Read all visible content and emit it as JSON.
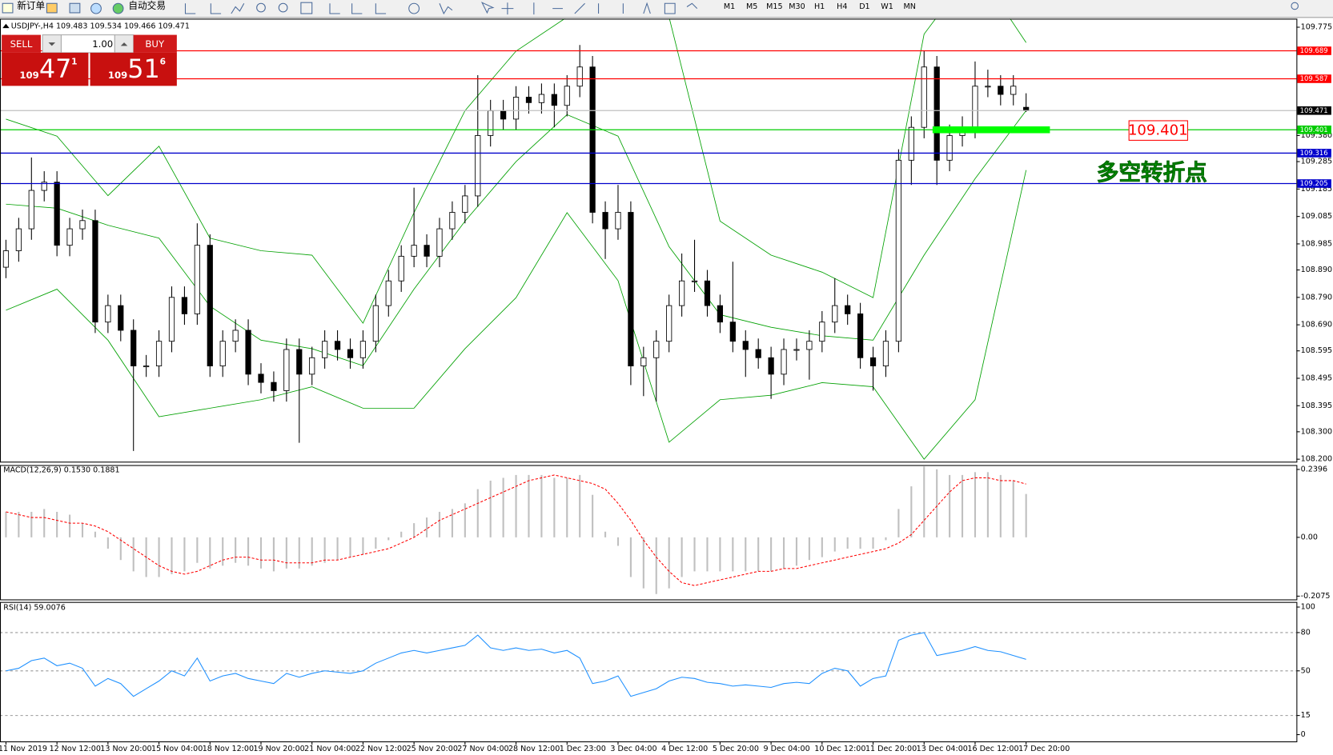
{
  "toolbar": {
    "new_order": "新订单",
    "auto_trading": "自动交易",
    "timeframes": [
      "M1",
      "M5",
      "M15",
      "M30",
      "H1",
      "H4",
      "D1",
      "W1",
      "MN"
    ]
  },
  "trade_panel": {
    "sell_label": "SELL",
    "buy_label": "BUY",
    "volume": "1.00",
    "sell_price": [
      "109",
      "47",
      "1"
    ],
    "buy_price": [
      "109",
      "51",
      "6"
    ]
  },
  "chart_data": [
    {
      "type": "candlestick",
      "header": "USDJPY-,H4  109.483 109.534 109.466 109.471",
      "xlim": [
        -0.467,
        101.2
      ],
      "xticks": [
        {
          "value": 0,
          "label": "11 Nov 2019"
        },
        {
          "value": 4,
          "label": "12 Nov 12:00"
        },
        {
          "value": 8,
          "label": "13 Nov 20:00"
        },
        {
          "value": 12,
          "label": "15 Nov 04:00"
        },
        {
          "value": 16,
          "label": "18 Nov 12:00"
        },
        {
          "value": 20,
          "label": "19 Nov 20:00"
        },
        {
          "value": 24,
          "label": "21 Nov 04:00"
        },
        {
          "value": 28,
          "label": "22 Nov 12:00"
        },
        {
          "value": 32,
          "label": "25 Nov 20:00"
        },
        {
          "value": 36,
          "label": "27 Nov 04:00"
        },
        {
          "value": 40,
          "label": "28 Nov 12:00"
        },
        {
          "value": 44,
          "label": "1 Dec 23:00"
        },
        {
          "value": 48,
          "label": "3 Dec 04:00"
        },
        {
          "value": 52,
          "label": "4 Dec 12:00"
        },
        {
          "value": 56,
          "label": "5 Dec 20:00"
        },
        {
          "value": 60,
          "label": "9 Dec 04:00"
        },
        {
          "value": 64,
          "label": "10 Dec 12:00"
        },
        {
          "value": 68,
          "label": "11 Dec 20:00"
        },
        {
          "value": 72,
          "label": "13 Dec 04:00"
        },
        {
          "value": 76,
          "label": "16 Dec 12:00"
        },
        {
          "value": 80,
          "label": "17 Dec 20:00"
        }
      ],
      "ylim": [
        108.191,
        109.806
      ],
      "yticks": [
        109.775,
        {
          "value": 109.38,
          "label": "109.380"
        },
        109.285,
        109.185,
        109.085,
        108.985,
        {
          "value": 108.89,
          "label": "108.890"
        },
        {
          "value": 108.79,
          "label": "108.790"
        },
        {
          "value": 108.69,
          "label": "108.690"
        },
        108.595,
        108.495,
        108.395,
        {
          "value": 108.3,
          "label": "108.300"
        },
        {
          "value": 108.2,
          "label": "108.200"
        }
      ],
      "bull_color": "#ffffff",
      "bear_color": "#000000",
      "open": [
        108.9,
        108.96,
        109.04,
        109.18,
        109.21,
        108.98,
        109.04,
        109.07,
        108.7,
        108.76,
        108.67,
        108.54,
        108.54,
        108.63,
        108.79,
        108.73,
        108.98,
        108.54,
        108.63,
        108.67,
        108.51,
        108.48,
        108.45,
        108.6,
        108.51,
        108.57,
        108.63,
        108.6,
        108.57,
        108.63,
        108.76,
        108.85,
        108.94,
        108.98,
        108.94,
        109.04,
        109.1,
        109.16,
        109.38,
        109.47,
        109.44,
        109.52,
        109.5,
        109.53,
        109.49,
        109.56,
        109.63,
        109.1,
        109.04,
        109.1,
        108.54,
        108.57,
        108.63,
        108.76,
        108.85,
        108.85,
        108.76,
        108.7,
        108.63,
        108.6,
        108.57,
        108.51,
        108.6,
        108.6,
        108.63,
        108.7,
        108.76,
        108.73,
        108.57,
        108.54,
        108.63,
        109.29,
        109.41,
        109.63,
        109.29,
        109.38,
        109.41,
        109.56,
        109.56,
        109.53,
        109.483
      ],
      "high": [
        109.0,
        109.08,
        109.3,
        109.25,
        109.25,
        109.08,
        109.11,
        109.11,
        108.8,
        108.8,
        108.71,
        108.58,
        108.67,
        108.83,
        108.83,
        109.06,
        109.02,
        108.67,
        108.71,
        108.71,
        108.55,
        108.52,
        108.64,
        108.64,
        108.61,
        108.67,
        108.67,
        108.64,
        108.67,
        108.8,
        108.89,
        108.98,
        109.19,
        109.02,
        109.08,
        109.14,
        109.2,
        109.6,
        109.51,
        109.51,
        109.56,
        109.56,
        109.57,
        109.57,
        109.6,
        109.71,
        109.67,
        109.14,
        109.2,
        109.14,
        108.61,
        108.67,
        108.8,
        108.95,
        109.0,
        108.89,
        108.8,
        108.92,
        108.67,
        108.64,
        108.61,
        108.64,
        108.64,
        108.67,
        108.74,
        108.86,
        108.8,
        108.77,
        108.61,
        108.67,
        109.33,
        109.45,
        109.69,
        109.67,
        109.42,
        109.45,
        109.65,
        109.62,
        109.6,
        109.6,
        109.534
      ],
      "low": [
        108.86,
        108.92,
        109.0,
        109.14,
        108.94,
        108.94,
        109.0,
        108.66,
        108.66,
        108.63,
        108.23,
        108.5,
        108.5,
        108.59,
        108.69,
        108.69,
        108.5,
        108.5,
        108.59,
        108.47,
        108.44,
        108.41,
        108.41,
        108.26,
        108.47,
        108.53,
        108.56,
        108.53,
        108.53,
        108.59,
        108.72,
        108.81,
        108.9,
        108.9,
        108.9,
        109.0,
        109.06,
        109.12,
        109.34,
        109.4,
        109.4,
        109.46,
        109.46,
        109.41,
        109.45,
        109.52,
        109.06,
        108.93,
        109.0,
        108.47,
        108.43,
        108.41,
        108.59,
        108.72,
        108.81,
        108.72,
        108.66,
        108.59,
        108.5,
        108.53,
        108.42,
        108.47,
        108.56,
        108.49,
        108.59,
        108.66,
        108.69,
        108.53,
        108.45,
        108.5,
        108.59,
        109.2,
        109.37,
        109.2,
        109.25,
        109.34,
        109.37,
        109.52,
        109.49,
        109.49,
        109.466
      ],
      "close": [
        108.96,
        109.04,
        109.18,
        109.21,
        108.98,
        109.04,
        109.07,
        108.7,
        108.76,
        108.67,
        108.54,
        108.54,
        108.63,
        108.79,
        108.73,
        108.98,
        108.54,
        108.63,
        108.67,
        108.51,
        108.48,
        108.45,
        108.6,
        108.51,
        108.57,
        108.63,
        108.6,
        108.57,
        108.63,
        108.76,
        108.85,
        108.94,
        108.98,
        108.94,
        109.04,
        109.1,
        109.16,
        109.38,
        109.47,
        109.44,
        109.52,
        109.5,
        109.53,
        109.49,
        109.56,
        109.63,
        109.1,
        109.04,
        109.1,
        108.54,
        108.57,
        108.63,
        108.76,
        108.85,
        108.85,
        108.76,
        108.7,
        108.63,
        108.6,
        108.57,
        108.51,
        108.6,
        108.6,
        108.63,
        108.7,
        108.76,
        108.73,
        108.57,
        108.54,
        108.63,
        109.29,
        109.41,
        109.63,
        109.29,
        109.38,
        109.41,
        109.56,
        109.56,
        109.53,
        109.56,
        109.471
      ],
      "bands": {
        "color": "#00a000",
        "x": [
          0,
          4,
          8,
          12,
          16,
          20,
          24,
          28,
          32,
          36,
          40,
          44,
          48,
          52,
          56,
          60,
          64,
          68,
          72,
          76,
          80
        ],
        "upper": [
          109.44,
          109.378,
          109.161,
          109.341,
          109.006,
          108.96,
          108.944,
          108.696,
          109.099,
          109.471,
          109.688,
          109.812,
          109.874,
          109.812,
          109.068,
          108.944,
          108.882,
          108.789,
          109.75,
          109.998,
          109.719
        ],
        "middle": [
          109.13,
          109.115,
          109.053,
          109.006,
          108.758,
          108.634,
          108.603,
          108.541,
          108.82,
          109.068,
          109.285,
          109.456,
          109.378,
          108.975,
          108.727,
          108.681,
          108.65,
          108.634,
          108.944,
          109.223,
          109.471
        ],
        "lower": [
          108.743,
          108.82,
          108.634,
          108.355,
          108.386,
          108.417,
          108.464,
          108.386,
          108.386,
          108.603,
          108.789,
          109.099,
          108.851,
          108.262,
          108.417,
          108.433,
          108.479,
          108.464,
          108.2,
          108.417,
          109.254
        ]
      },
      "levels": [
        {
          "value": 109.689,
          "color": "#ff0000",
          "label_fill": "#ff0000"
        },
        {
          "value": 109.587,
          "color": "#ff0000",
          "label_fill": "#ff0000"
        },
        {
          "value": 109.471,
          "color": "#c0c0c0",
          "label_fill": "#000000"
        },
        {
          "value": 109.401,
          "color": "#00cc00",
          "label_fill": "#00cc00"
        },
        {
          "value": 109.316,
          "color": "#0000cc",
          "label_fill": "#0000cc"
        },
        {
          "value": 109.205,
          "color": "#0000cc",
          "label_fill": "#0000cc"
        }
      ],
      "annotations": [
        "109.401",
        "多空转折点"
      ]
    },
    {
      "type": "macd",
      "title": "MACD(12,26,9) 0.1530 0.1881",
      "ylim": [
        -0.219,
        0.255
      ],
      "yticks": [
        0.2396,
        {
          "value": 0,
          "label": "0.00"
        },
        -0.2075
      ],
      "histogram_color": "#c0c0c0",
      "signal_color": "#ff0000",
      "histogram": [
        0.09,
        0.09,
        0.09,
        0.1,
        0.09,
        0.08,
        0.05,
        0.02,
        -0.04,
        -0.08,
        -0.12,
        -0.14,
        -0.14,
        -0.13,
        -0.12,
        -0.09,
        -0.11,
        -0.1,
        -0.09,
        -0.1,
        -0.11,
        -0.12,
        -0.11,
        -0.11,
        -0.1,
        -0.09,
        -0.08,
        -0.07,
        -0.06,
        -0.04,
        -0.01,
        0.02,
        0.05,
        0.07,
        0.09,
        0.1,
        0.12,
        0.17,
        0.2,
        0.21,
        0.22,
        0.22,
        0.22,
        0.21,
        0.21,
        0.22,
        0.15,
        0.02,
        -0.03,
        -0.14,
        -0.18,
        -0.2,
        -0.18,
        -0.14,
        -0.12,
        -0.12,
        -0.12,
        -0.12,
        -0.12,
        -0.12,
        -0.12,
        -0.11,
        -0.1,
        -0.08,
        -0.07,
        -0.05,
        -0.04,
        -0.04,
        -0.04,
        -0.01,
        0.1,
        0.18,
        0.25,
        0.24,
        0.22,
        0.22,
        0.23,
        0.23,
        0.22,
        0.2,
        0.153
      ],
      "signal": [
        0.09,
        0.08,
        0.07,
        0.07,
        0.06,
        0.05,
        0.05,
        0.04,
        0.02,
        -0.01,
        -0.04,
        -0.07,
        -0.1,
        -0.12,
        -0.13,
        -0.12,
        -0.1,
        -0.08,
        -0.07,
        -0.07,
        -0.08,
        -0.08,
        -0.09,
        -0.09,
        -0.09,
        -0.08,
        -0.08,
        -0.07,
        -0.06,
        -0.05,
        -0.04,
        -0.02,
        0.0,
        0.03,
        0.06,
        0.08,
        0.1,
        0.12,
        0.14,
        0.16,
        0.18,
        0.2,
        0.21,
        0.22,
        0.21,
        0.2,
        0.19,
        0.17,
        0.12,
        0.06,
        -0.01,
        -0.07,
        -0.12,
        -0.16,
        -0.17,
        -0.16,
        -0.15,
        -0.14,
        -0.13,
        -0.12,
        -0.12,
        -0.11,
        -0.11,
        -0.1,
        -0.09,
        -0.08,
        -0.07,
        -0.06,
        -0.05,
        -0.04,
        -0.02,
        0.01,
        0.06,
        0.11,
        0.16,
        0.2,
        0.21,
        0.21,
        0.2,
        0.2,
        0.1881
      ]
    },
    {
      "type": "line",
      "title": "RSI(14) 59.0076",
      "ylim": [
        -5.3,
        104
      ],
      "yticks": [
        100,
        80,
        50,
        15,
        0
      ],
      "levels": [
        80,
        50,
        15
      ],
      "color": "#1e90ff",
      "values": [
        50,
        52,
        58,
        60,
        54,
        56,
        52,
        38,
        44,
        40,
        30,
        36,
        42,
        50,
        46,
        60,
        42,
        46,
        48,
        44,
        42,
        40,
        48,
        45,
        48,
        50,
        49,
        48,
        50,
        56,
        60,
        64,
        66,
        64,
        66,
        68,
        70,
        78,
        68,
        66,
        68,
        66,
        67,
        64,
        66,
        60,
        40,
        42,
        46,
        30,
        33,
        36,
        42,
        45,
        44,
        41,
        40,
        38,
        39,
        38,
        37,
        40,
        41,
        40,
        48,
        52,
        50,
        38,
        44,
        46,
        74,
        78,
        80,
        62,
        64,
        66,
        69,
        66,
        65,
        62,
        59.0076
      ]
    }
  ]
}
